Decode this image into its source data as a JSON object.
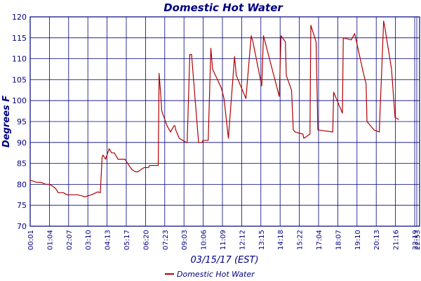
{
  "chart_data": {
    "type": "line",
    "title": "Domestic Hot Water",
    "xlabel": "03/15/17 (EST)",
    "ylabel": "Degrees F",
    "ylim": [
      70,
      120
    ],
    "yticks": [
      70,
      75,
      80,
      85,
      90,
      95,
      100,
      105,
      110,
      115,
      120
    ],
    "xlim": [
      "00:01",
      "22:53"
    ],
    "xtick_labels": [
      "00:01",
      "01:04",
      "02:07",
      "03:10",
      "04:13",
      "05:17",
      "06:20",
      "07:23",
      "09:03",
      "10:06",
      "11:09",
      "12:12",
      "13:15",
      "14:18",
      "15:22",
      "17:04",
      "18:07",
      "19:10",
      "20:13",
      "21:16",
      "22:19",
      "22:53"
    ],
    "grid": true,
    "legend_position": "bottom-center",
    "series": [
      {
        "name": "Domestic Hot Water",
        "color": "#b00000",
        "x": [
          0,
          0.35,
          0.6,
          0.9,
          1.1,
          1.3,
          1.45,
          1.6,
          1.9,
          2.1,
          2.4,
          2.7,
          3.0,
          3.1,
          3.5,
          3.75,
          3.85,
          4.0,
          4.1,
          4.15,
          4.3,
          4.5,
          4.65,
          4.8,
          5.0,
          5.1,
          5.3,
          5.4,
          5.8,
          6.0,
          6.05,
          6.15,
          6.3,
          6.5,
          6.75,
          6.8,
          6.9,
          7.1,
          7.3,
          7.35,
          7.45,
          7.5,
          7.8,
          8.0,
          8.2,
          8.25,
          8.3,
          8.5,
          8.9,
          8.95,
          9.1,
          9.2,
          9.6,
          9.8,
          9.85,
          10.15,
          10.3,
          10.4,
          10.9,
          11.05,
          11.3,
          11.65,
          11.75,
          12.3,
          12.6,
          12.7,
          13.2,
          13.3,
          14.2,
          14.3,
          14.55,
          14.6,
          14.9,
          15.0,
          15.1,
          15.55,
          15.6,
          15.95,
          16.0,
          16.3,
          16.4,
          17.25,
          17.3,
          17.8,
          17.85,
          18.3,
          18.5,
          19.0,
          19.15,
          19.2,
          19.6,
          19.9,
          20.15,
          20.2,
          20.6,
          20.8,
          21.0
        ],
        "y": [
          81,
          80.5,
          80.5,
          80,
          80,
          79.5,
          79,
          78,
          78,
          77.5,
          77.5,
          77.5,
          77.2,
          77,
          77.5,
          78,
          78.2,
          78,
          86.5,
          87,
          86,
          88.5,
          87.5,
          87.5,
          86,
          86,
          86,
          86,
          83.5,
          83,
          83,
          83,
          83.5,
          84,
          84,
          84.5,
          84.5,
          84.5,
          84.5,
          106.5,
          101,
          97.5,
          94,
          92.5,
          94,
          94,
          93,
          91,
          90,
          90,
          111,
          111,
          90,
          90,
          90.5,
          90.5,
          112.5,
          107.5,
          103,
          100.5,
          91,
          110.5,
          106,
          100.5,
          115.5,
          114,
          103.5,
          115.5,
          101,
          115.5,
          114,
          106,
          102.5,
          93,
          92.5,
          92,
          91,
          92,
          118,
          114,
          93,
          92.5,
          102,
          97,
          115,
          114.5,
          116,
          106.5,
          104,
          95,
          93,
          92.5,
          119,
          118,
          107.5,
          96,
          95.5
        ]
      }
    ]
  }
}
